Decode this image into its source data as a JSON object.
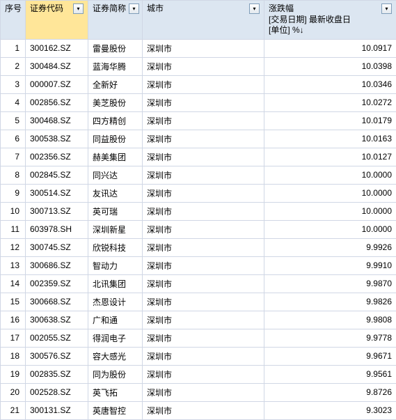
{
  "columns": {
    "seq": {
      "label": "序号"
    },
    "code": {
      "label": "证券代码"
    },
    "name": {
      "label": "证券简称"
    },
    "city": {
      "label": "城市"
    },
    "change": {
      "label": "涨跌幅",
      "sub1": "[交易日期] 最新收盘日",
      "sub2": "[单位] %↓"
    }
  },
  "dropdown_glyph": "▾",
  "colors": {
    "header_bg": "#dce6f1",
    "selected_bg": "#ffe699",
    "border": "#d0d7e5",
    "btn_border": "#7f9db9"
  },
  "rows": [
    {
      "seq": "1",
      "code": "300162.SZ",
      "name": "雷曼股份",
      "city": "深圳市",
      "change": "10.0917"
    },
    {
      "seq": "2",
      "code": "300484.SZ",
      "name": "蓝海华腾",
      "city": "深圳市",
      "change": "10.0398"
    },
    {
      "seq": "3",
      "code": "000007.SZ",
      "name": "全新好",
      "city": "深圳市",
      "change": "10.0346"
    },
    {
      "seq": "4",
      "code": "002856.SZ",
      "name": "美芝股份",
      "city": "深圳市",
      "change": "10.0272"
    },
    {
      "seq": "5",
      "code": "300468.SZ",
      "name": "四方精创",
      "city": "深圳市",
      "change": "10.0179"
    },
    {
      "seq": "6",
      "code": "300538.SZ",
      "name": "同益股份",
      "city": "深圳市",
      "change": "10.0163"
    },
    {
      "seq": "7",
      "code": "002356.SZ",
      "name": "赫美集团",
      "city": "深圳市",
      "change": "10.0127"
    },
    {
      "seq": "8",
      "code": "002845.SZ",
      "name": "同兴达",
      "city": "深圳市",
      "change": "10.0000"
    },
    {
      "seq": "9",
      "code": "300514.SZ",
      "name": "友讯达",
      "city": "深圳市",
      "change": "10.0000"
    },
    {
      "seq": "10",
      "code": "300713.SZ",
      "name": "英可瑞",
      "city": "深圳市",
      "change": "10.0000"
    },
    {
      "seq": "11",
      "code": "603978.SH",
      "name": "深圳新星",
      "city": "深圳市",
      "change": "10.0000"
    },
    {
      "seq": "12",
      "code": "300745.SZ",
      "name": "欣锐科技",
      "city": "深圳市",
      "change": "9.9926"
    },
    {
      "seq": "13",
      "code": "300686.SZ",
      "name": "智动力",
      "city": "深圳市",
      "change": "9.9910"
    },
    {
      "seq": "14",
      "code": "002359.SZ",
      "name": "北讯集团",
      "city": "深圳市",
      "change": "9.9870"
    },
    {
      "seq": "15",
      "code": "300668.SZ",
      "name": "杰恩设计",
      "city": "深圳市",
      "change": "9.9826"
    },
    {
      "seq": "16",
      "code": "300638.SZ",
      "name": "广和通",
      "city": "深圳市",
      "change": "9.9808"
    },
    {
      "seq": "17",
      "code": "002055.SZ",
      "name": "得润电子",
      "city": "深圳市",
      "change": "9.9778"
    },
    {
      "seq": "18",
      "code": "300576.SZ",
      "name": "容大感光",
      "city": "深圳市",
      "change": "9.9671"
    },
    {
      "seq": "19",
      "code": "002835.SZ",
      "name": "同为股份",
      "city": "深圳市",
      "change": "9.9561"
    },
    {
      "seq": "20",
      "code": "002528.SZ",
      "name": "英飞拓",
      "city": "深圳市",
      "change": "9.8726"
    },
    {
      "seq": "21",
      "code": "300131.SZ",
      "name": "英唐智控",
      "city": "深圳市",
      "change": "9.3023"
    }
  ]
}
